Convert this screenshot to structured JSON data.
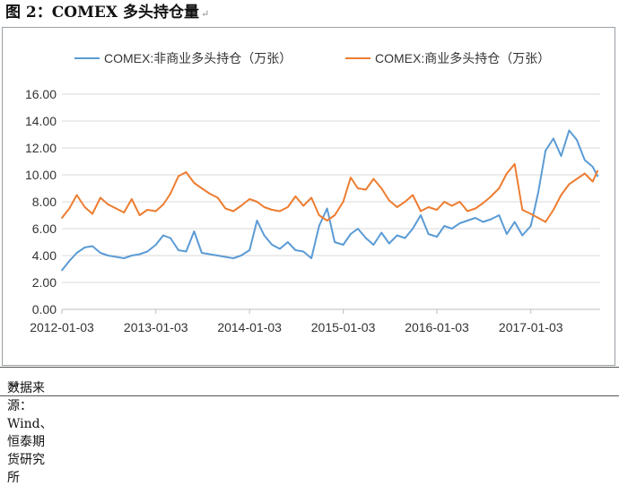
{
  "figure": {
    "title": "图 2：COMEX 多头持仓量",
    "source": "数据来源：Wind、恒泰期货研究所",
    "return_mark": "↵"
  },
  "chart_data": {
    "type": "line",
    "title": "",
    "xlabel": "",
    "ylabel": "",
    "ylim": [
      0,
      16
    ],
    "yticks": [
      "16.00",
      "14.00",
      "12.00",
      "10.00",
      "8.00",
      "6.00",
      "4.00",
      "2.00",
      "0.00"
    ],
    "xticks": [
      "2012-01-03",
      "2013-01-03",
      "2014-01-03",
      "2015-01-03",
      "2016-01-03",
      "2017-01-03"
    ],
    "xlim": [
      "2012-01-03",
      "2017-09-30"
    ],
    "grid": "horizontal",
    "legend": "top",
    "colors": {
      "series_0": "#5b9bd5",
      "series_1": "#ed7d31",
      "grid": "#d9d9d9",
      "axis": "#bfbfbf",
      "text": "#333333"
    },
    "series": [
      {
        "name": "COMEX:非商业多头持仓（万张）",
        "x": [
          "2012-01-03",
          "2012-02-01",
          "2012-03-01",
          "2012-04-01",
          "2012-05-01",
          "2012-06-01",
          "2012-07-01",
          "2012-08-01",
          "2012-09-01",
          "2012-10-01",
          "2012-11-01",
          "2012-12-01",
          "2013-01-03",
          "2013-02-01",
          "2013-03-01",
          "2013-04-01",
          "2013-05-01",
          "2013-06-01",
          "2013-07-01",
          "2013-08-01",
          "2013-09-01",
          "2013-10-01",
          "2013-11-01",
          "2013-12-01",
          "2014-01-03",
          "2014-02-01",
          "2014-03-01",
          "2014-04-01",
          "2014-05-01",
          "2014-06-01",
          "2014-07-01",
          "2014-08-01",
          "2014-09-01",
          "2014-10-01",
          "2014-11-01",
          "2014-12-01",
          "2015-01-03",
          "2015-02-01",
          "2015-03-01",
          "2015-04-01",
          "2015-05-01",
          "2015-06-01",
          "2015-07-01",
          "2015-08-01",
          "2015-09-01",
          "2015-10-01",
          "2015-11-01",
          "2015-12-01",
          "2016-01-03",
          "2016-02-01",
          "2016-03-01",
          "2016-04-01",
          "2016-05-01",
          "2016-06-01",
          "2016-07-01",
          "2016-08-01",
          "2016-09-01",
          "2016-10-01",
          "2016-11-01",
          "2016-12-01",
          "2017-01-03",
          "2017-02-01",
          "2017-03-01",
          "2017-04-01",
          "2017-05-01",
          "2017-06-01",
          "2017-07-01",
          "2017-08-01",
          "2017-09-01",
          "2017-09-20"
        ],
        "values": [
          2.9,
          3.6,
          4.2,
          4.6,
          4.7,
          4.2,
          4.0,
          3.9,
          3.8,
          4.0,
          4.1,
          4.3,
          4.8,
          5.5,
          5.3,
          4.4,
          4.3,
          5.8,
          4.2,
          4.1,
          4.0,
          3.9,
          3.8,
          4.0,
          4.4,
          6.6,
          5.5,
          4.8,
          4.5,
          5.0,
          4.4,
          4.3,
          3.8,
          6.2,
          7.5,
          5.0,
          4.8,
          5.6,
          6.0,
          5.3,
          4.8,
          5.7,
          4.9,
          5.5,
          5.3,
          6.0,
          7.0,
          5.6,
          5.4,
          6.2,
          6.0,
          6.4,
          6.6,
          6.8,
          6.5,
          6.7,
          7.0,
          5.6,
          6.5,
          5.5,
          6.2,
          8.7,
          11.8,
          12.7,
          11.4,
          13.3,
          12.6,
          11.1,
          10.6,
          9.9
        ]
      },
      {
        "name": "COMEX:商业多头持仓（万张）",
        "x": [
          "2012-01-03",
          "2012-02-01",
          "2012-03-01",
          "2012-04-01",
          "2012-05-01",
          "2012-06-01",
          "2012-07-01",
          "2012-08-01",
          "2012-09-01",
          "2012-10-01",
          "2012-11-01",
          "2012-12-01",
          "2013-01-03",
          "2013-02-01",
          "2013-03-01",
          "2013-04-01",
          "2013-05-01",
          "2013-06-01",
          "2013-07-01",
          "2013-08-01",
          "2013-09-01",
          "2013-10-01",
          "2013-11-01",
          "2013-12-01",
          "2014-01-03",
          "2014-02-01",
          "2014-03-01",
          "2014-04-01",
          "2014-05-01",
          "2014-06-01",
          "2014-07-01",
          "2014-08-01",
          "2014-09-01",
          "2014-10-01",
          "2014-11-01",
          "2014-12-01",
          "2015-01-03",
          "2015-02-01",
          "2015-03-01",
          "2015-04-01",
          "2015-05-01",
          "2015-06-01",
          "2015-07-01",
          "2015-08-01",
          "2015-09-01",
          "2015-10-01",
          "2015-11-01",
          "2015-12-01",
          "2016-01-03",
          "2016-02-01",
          "2016-03-01",
          "2016-04-01",
          "2016-05-01",
          "2016-06-01",
          "2016-07-01",
          "2016-08-01",
          "2016-09-01",
          "2016-10-01",
          "2016-11-01",
          "2016-12-01",
          "2017-01-03",
          "2017-02-01",
          "2017-03-01",
          "2017-04-01",
          "2017-05-01",
          "2017-06-01",
          "2017-07-01",
          "2017-08-01",
          "2017-09-01",
          "2017-09-20"
        ],
        "values": [
          6.8,
          7.5,
          8.5,
          7.6,
          7.1,
          8.3,
          7.8,
          7.5,
          7.2,
          8.2,
          7.0,
          7.4,
          7.3,
          7.8,
          8.6,
          9.9,
          10.2,
          9.4,
          9.0,
          8.6,
          8.3,
          7.5,
          7.3,
          7.7,
          8.2,
          8.0,
          7.6,
          7.4,
          7.3,
          7.6,
          8.4,
          7.7,
          8.3,
          7.0,
          6.6,
          7.0,
          8.0,
          9.8,
          9.0,
          8.9,
          9.7,
          9.0,
          8.1,
          7.6,
          8.0,
          8.5,
          7.3,
          7.6,
          7.4,
          8.0,
          7.7,
          8.0,
          7.3,
          7.5,
          7.9,
          8.4,
          9.0,
          10.1,
          10.8,
          7.4,
          7.1,
          6.8,
          6.5,
          7.4,
          8.5,
          9.3,
          9.7,
          10.1,
          9.5,
          10.3
        ]
      }
    ]
  }
}
